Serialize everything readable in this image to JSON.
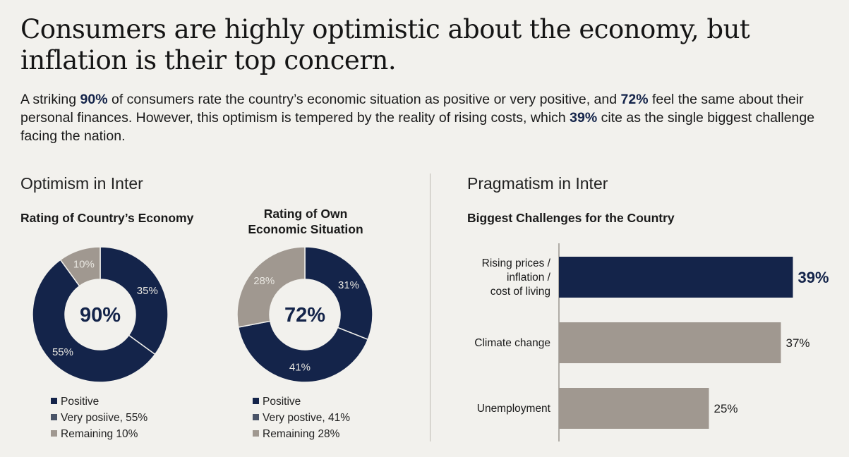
{
  "title": "Consumers are highly optimistic about the economy, but inflation is their top concern.",
  "intro": {
    "p1": "A striking ",
    "h1": "90%",
    "p2": " of consumers rate the country’s economic situation as positive or very positive, and ",
    "h2": "72%",
    "p3": " feel the same about their personal finances. However, this optimism is tempered by the reality of rising costs, which ",
    "h3": "39%",
    "p4": " cite as the single biggest challenge facing the nation."
  },
  "left_section": "Optimism in Inter",
  "right_section": "Pragmatism in Inter",
  "colors": {
    "navy": "#14244a",
    "gray": "#a09890",
    "slate": "#4a5468",
    "bg": "#f2f1ed"
  },
  "chart_data": [
    {
      "type": "pie",
      "title": "Rating of Country’s Economy",
      "center_label": "90%",
      "slices": [
        {
          "label": "35%",
          "value": 35,
          "color": "navy"
        },
        {
          "label": "55%",
          "value": 55,
          "color": "navy"
        },
        {
          "label": "10%",
          "value": 10,
          "color": "gray"
        }
      ],
      "legend": [
        {
          "label": "Positive",
          "color": "navy"
        },
        {
          "label": "Very posiive, 55%",
          "color": "slate"
        },
        {
          "label": "Remaining 10%",
          "color": "gray"
        }
      ]
    },
    {
      "type": "pie",
      "title": "Rating of Own Economic Situation",
      "center_label": "72%",
      "slices": [
        {
          "label": "31%",
          "value": 31,
          "color": "navy"
        },
        {
          "label": "41%",
          "value": 41,
          "color": "navy"
        },
        {
          "label": "28%",
          "value": 28,
          "color": "gray"
        }
      ],
      "legend": [
        {
          "label": "Positive",
          "color": "navy"
        },
        {
          "label": "Very postive, 41%",
          "color": "slate"
        },
        {
          "label": "Remaining 28%",
          "color": "gray"
        }
      ]
    },
    {
      "type": "bar",
      "orientation": "horizontal",
      "title": "Biggest Challenges for the Country",
      "categories": [
        "Rising prices / inflation / cost of living",
        "Climate change",
        "Unemployment"
      ],
      "values": [
        39,
        37,
        25
      ],
      "labels": [
        "39%",
        "37%",
        "25%"
      ],
      "highlight": [
        true,
        false,
        false
      ]
    }
  ]
}
